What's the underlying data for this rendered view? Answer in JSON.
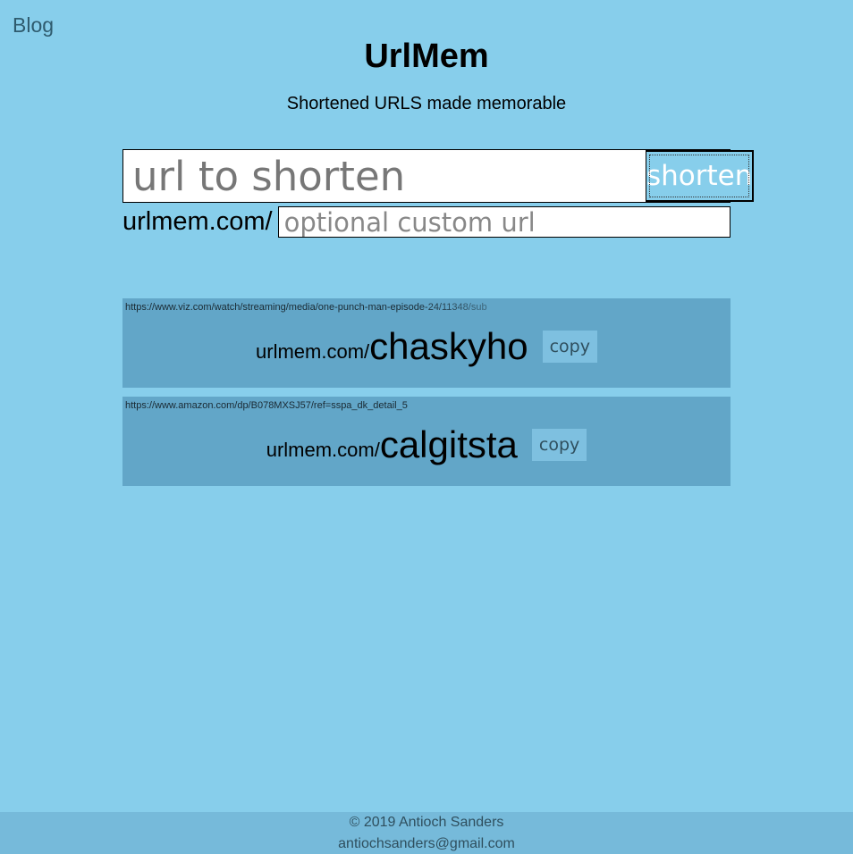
{
  "nav": {
    "blog_label": "Blog"
  },
  "header": {
    "title": "UrlMem",
    "subtitle": "Shortened URLS made memorable"
  },
  "form": {
    "url_placeholder": "url to shorten",
    "url_value": "",
    "shorten_label": "shorten",
    "custom_prefix": "urlmem.com/",
    "custom_placeholder": "optional custom url",
    "custom_value": ""
  },
  "results": [
    {
      "original_url": "https://www.viz.com/watch/streaming/media/one-punch-man-episode-24/11348/sub",
      "prefix": "urlmem.com/",
      "code": "chaskyho",
      "copy_label": "copy"
    },
    {
      "original_url": "https://www.amazon.com/dp/B078MXSJ57/ref=sspa_dk_detail_5",
      "prefix": "urlmem.com/",
      "code": "calgitsta",
      "copy_label": "copy"
    }
  ],
  "footer": {
    "copyright": "© 2019 Antioch Sanders",
    "email": "antiochsanders@gmail.com"
  },
  "colors": {
    "background": "#87ceeb",
    "card": "#62a6c8",
    "footer": "#76bada"
  }
}
